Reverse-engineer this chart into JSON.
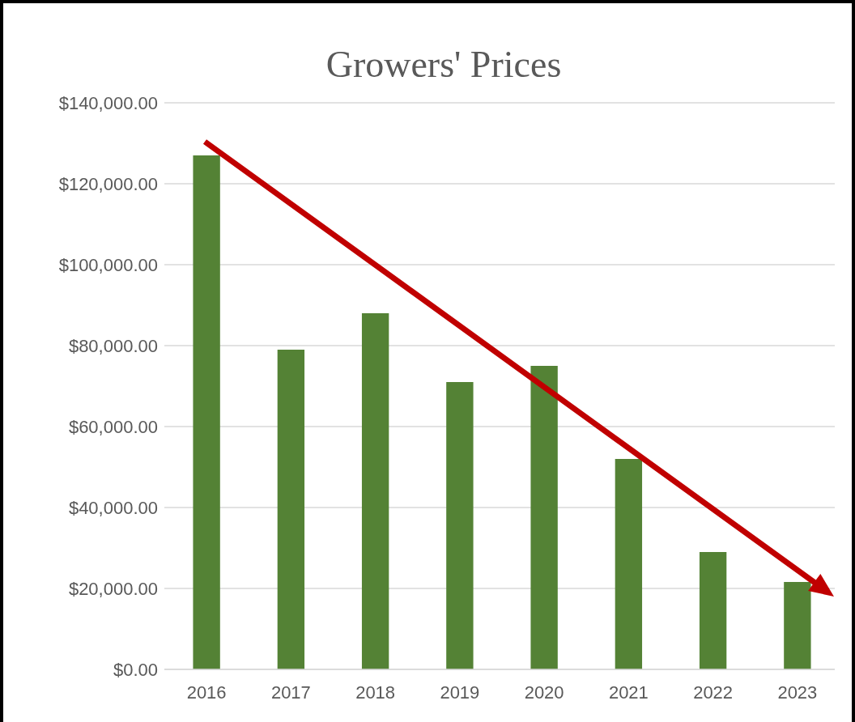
{
  "chart_data": {
    "type": "bar",
    "title": "Growers' Prices",
    "categories": [
      "2016",
      "2017",
      "2018",
      "2019",
      "2020",
      "2021",
      "2022",
      "2023"
    ],
    "values": [
      127000,
      79000,
      88000,
      71000,
      75000,
      52000,
      29000,
      21600
    ],
    "color": "#548235",
    "ylim": [
      0,
      140000
    ],
    "yticks": [
      {
        "value": 0,
        "label": "$0.00"
      },
      {
        "value": 20000,
        "label": "$20,000.00"
      },
      {
        "value": 40000,
        "label": "$40,000.00"
      },
      {
        "value": 60000,
        "label": "$60,000.00"
      },
      {
        "value": 80000,
        "label": "$80,000.00"
      },
      {
        "value": 100000,
        "label": "$100,000.00"
      },
      {
        "value": 120000,
        "label": "$120,000.00"
      },
      {
        "value": 140000,
        "label": "$140,000.00"
      }
    ],
    "grid": "y"
  }
}
